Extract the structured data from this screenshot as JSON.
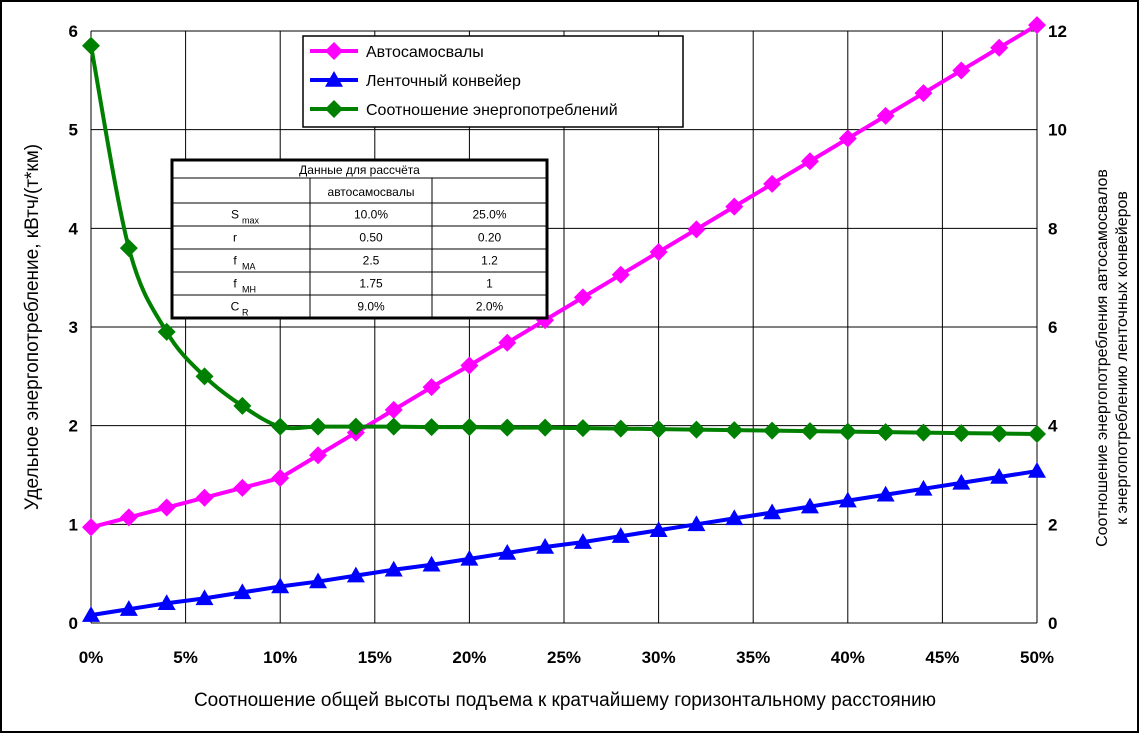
{
  "chart_data": {
    "type": "line",
    "xlabel": "Соотношение общей высоты подъема к кратчайшему горизонтальному расстоянию",
    "ylabel": "Удельное энергопотребление, кВтч/(т*км)",
    "y2label_line1": "Соотношение энергопотребления автосамосвалов",
    "y2label_line2": "к энергопотреблению ленточных конвейеров",
    "xlim": [
      0,
      50
    ],
    "ylim": [
      0,
      6
    ],
    "y2lim": [
      0,
      12
    ],
    "x_ticks": [
      "0%",
      "5%",
      "10%",
      "15%",
      "20%",
      "25%",
      "30%",
      "35%",
      "40%",
      "45%",
      "50%"
    ],
    "y_ticks": [
      "0",
      "1",
      "2",
      "3",
      "4",
      "5",
      "6"
    ],
    "y2_ticks": [
      "0",
      "2",
      "4",
      "6",
      "8",
      "10",
      "12"
    ],
    "grid": true,
    "legend_position": "top-center",
    "x": [
      0,
      2,
      4,
      6,
      8,
      10,
      12,
      14,
      16,
      18,
      20,
      22,
      24,
      26,
      28,
      30,
      32,
      34,
      36,
      38,
      40,
      42,
      44,
      46,
      48,
      50
    ],
    "series": [
      {
        "name": "Автосамосвалы",
        "axis": "left",
        "color": "#ff00ff",
        "marker": "diamond",
        "values": [
          0.97,
          1.07,
          1.17,
          1.27,
          1.37,
          1.47,
          1.7,
          1.93,
          2.16,
          2.39,
          2.61,
          2.84,
          3.07,
          3.3,
          3.53,
          3.76,
          3.99,
          4.22,
          4.45,
          4.68,
          4.91,
          5.14,
          5.37,
          5.6,
          5.83,
          6.06
        ]
      },
      {
        "name": "Ленточный конвейер",
        "axis": "left",
        "color": "#0000ff",
        "marker": "triangle",
        "values": [
          0.08,
          0.14,
          0.2,
          0.25,
          0.31,
          0.37,
          0.42,
          0.48,
          0.54,
          0.59,
          0.65,
          0.71,
          0.77,
          0.82,
          0.88,
          0.94,
          1.0,
          1.06,
          1.12,
          1.18,
          1.24,
          1.3,
          1.36,
          1.42,
          1.48,
          1.54
        ]
      },
      {
        "name": "Соотношение энергопотреблений",
        "axis": "right",
        "color": "#008000",
        "marker": "diamond",
        "values": [
          11.7,
          7.6,
          5.9,
          5.0,
          4.4,
          3.98,
          3.98,
          3.98,
          3.98,
          3.97,
          3.97,
          3.96,
          3.96,
          3.95,
          3.94,
          3.93,
          3.92,
          3.91,
          3.9,
          3.89,
          3.88,
          3.87,
          3.86,
          3.85,
          3.84,
          3.83
        ]
      }
    ],
    "table": {
      "title": "Данные для рассчёта",
      "col_header": "автосамосвалы",
      "rows": [
        {
          "sym": "S",
          "sub": "max",
          "a": "10.0%",
          "b": "25.0%"
        },
        {
          "sym": "r",
          "sub": "",
          "a": "0.50",
          "b": "0.20"
        },
        {
          "sym": "f",
          "sub": "MA",
          "a": "2.5",
          "b": "1.2"
        },
        {
          "sym": "f",
          "sub": "MH",
          "a": "1.75",
          "b": "1"
        },
        {
          "sym": "C",
          "sub": "R",
          "a": "9.0%",
          "b": "2.0%"
        }
      ]
    }
  }
}
